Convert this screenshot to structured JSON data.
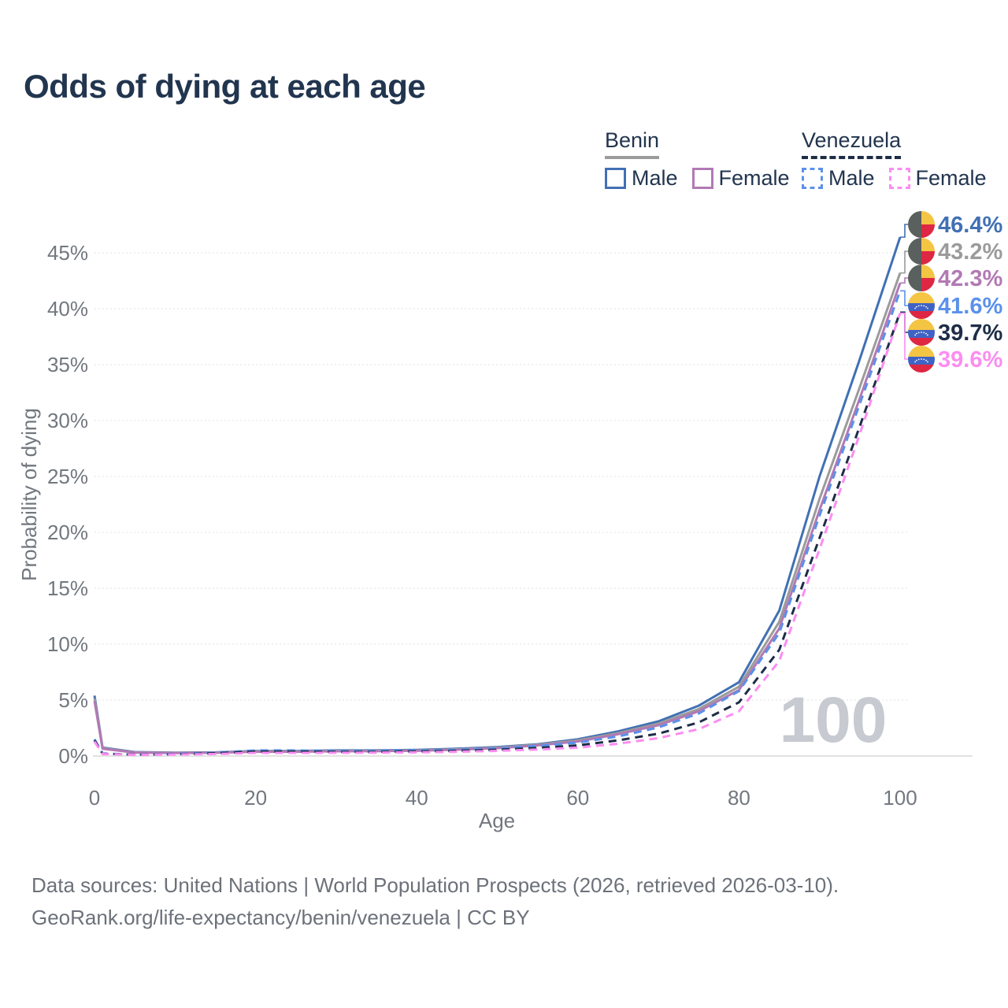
{
  "title": "Odds of dying at each age",
  "legend": {
    "benin": {
      "label": "Benin",
      "male": "Male",
      "female": "Female"
    },
    "venezuela": {
      "label": "Venezuela",
      "male": "Male",
      "female": "Female"
    }
  },
  "footer": {
    "line1": "Data sources: United Nations | World Population Prospects (2026, retrieved 2026-03-10).",
    "line2": "GeoRank.org/life-expectancy/benin/venezuela | CC BY"
  },
  "colors": {
    "benin_male": "#4170b4",
    "benin_all": "#9b9b9b",
    "benin_female": "#b279b4",
    "venezuela_male": "#5b91ea",
    "venezuela_all": "#1e2d47",
    "venezuela_female": "#fb8df1",
    "title_text": "#22354f",
    "axis_text": "#72777f",
    "footer_text": "#6c717a",
    "watermark": "#c7cad0",
    "gridline": "#ebebeb",
    "zero_line": "#e2e2e2",
    "benin_flag_green": "#5a605e",
    "benin_flag_yellow": "#f4c443",
    "benin_flag_red": "#dd2743",
    "venezuela_flag_yellow": "#f4c443",
    "venezuela_flag_blue": "#3f63c5",
    "venezuela_flag_red": "#dd2743"
  },
  "chart_data": {
    "type": "line",
    "title": "Odds of dying at each age",
    "xlabel": "Age",
    "ylabel": "Probability of dying",
    "watermark_age": "100",
    "xlim": [
      0,
      100
    ],
    "ylim_pct": [
      0,
      48
    ],
    "xticks": [
      0,
      20,
      40,
      60,
      80,
      100
    ],
    "yticks_pct": [
      0,
      5,
      10,
      15,
      20,
      25,
      30,
      35,
      40,
      45
    ],
    "grid": "horizontal-dotted",
    "legend_position": "top-right",
    "x_ages": [
      0,
      1,
      5,
      10,
      15,
      20,
      25,
      30,
      35,
      40,
      45,
      50,
      55,
      60,
      65,
      70,
      75,
      80,
      85,
      90,
      95,
      100
    ],
    "series": [
      {
        "name": "Benin Male",
        "country": "Benin",
        "sex": "Male",
        "style": "solid",
        "color": "#4170b4",
        "flag": "benin",
        "end_label": "46.4%",
        "end_value_pct": 46.4,
        "values_pct": [
          5.4,
          0.75,
          0.35,
          0.3,
          0.33,
          0.45,
          0.45,
          0.5,
          0.5,
          0.55,
          0.65,
          0.8,
          1.05,
          1.5,
          2.2,
          3.1,
          4.5,
          6.6,
          13.0,
          25.0,
          35.5,
          46.4
        ]
      },
      {
        "name": "Benin",
        "country": "Benin",
        "sex": "All",
        "style": "solid",
        "color": "#9b9b9b",
        "flag": "benin",
        "end_label": "43.2%",
        "end_value_pct": 43.2,
        "values_pct": [
          5.15,
          0.7,
          0.33,
          0.28,
          0.31,
          0.42,
          0.42,
          0.46,
          0.46,
          0.5,
          0.6,
          0.75,
          1.0,
          1.4,
          2.05,
          2.9,
          4.2,
          6.2,
          12.0,
          23.0,
          33.0,
          43.2
        ]
      },
      {
        "name": "Benin Female",
        "country": "Benin",
        "sex": "Female",
        "style": "solid",
        "color": "#b279b4",
        "flag": "benin",
        "end_label": "42.3%",
        "end_value_pct": 42.3,
        "values_pct": [
          4.9,
          0.65,
          0.31,
          0.26,
          0.29,
          0.38,
          0.38,
          0.42,
          0.43,
          0.47,
          0.56,
          0.7,
          0.95,
          1.3,
          1.95,
          2.75,
          4.0,
          5.9,
          11.4,
          22.0,
          32.0,
          42.3
        ]
      },
      {
        "name": "Venezuela Male",
        "country": "Venezuela",
        "sex": "Male",
        "style": "dashed",
        "color": "#5b91ea",
        "flag": "venezuela",
        "end_label": "41.6%",
        "end_value_pct": 41.6,
        "values_pct": [
          1.5,
          0.22,
          0.13,
          0.18,
          0.3,
          0.5,
          0.5,
          0.45,
          0.45,
          0.5,
          0.55,
          0.68,
          0.9,
          1.2,
          1.75,
          2.55,
          3.8,
          5.8,
          11.0,
          21.5,
          31.5,
          41.6
        ]
      },
      {
        "name": "Venezuela",
        "country": "Venezuela",
        "sex": "All",
        "style": "dashed",
        "color": "#1e2d47",
        "flag": "venezuela",
        "end_label": "39.7%",
        "end_value_pct": 39.7,
        "values_pct": [
          1.4,
          0.2,
          0.12,
          0.15,
          0.25,
          0.4,
          0.4,
          0.37,
          0.37,
          0.41,
          0.46,
          0.56,
          0.72,
          0.95,
          1.4,
          2.0,
          3.0,
          4.8,
          9.5,
          19.5,
          29.5,
          39.7
        ]
      },
      {
        "name": "Venezuela Female",
        "country": "Venezuela",
        "sex": "Female",
        "style": "dashed",
        "color": "#fb8df1",
        "flag": "venezuela",
        "end_label": "39.6%",
        "end_value_pct": 39.6,
        "values_pct": [
          1.3,
          0.18,
          0.11,
          0.13,
          0.18,
          0.28,
          0.28,
          0.29,
          0.3,
          0.33,
          0.38,
          0.46,
          0.58,
          0.75,
          1.1,
          1.6,
          2.4,
          4.0,
          8.5,
          18.5,
          28.8,
          39.6
        ]
      }
    ]
  }
}
